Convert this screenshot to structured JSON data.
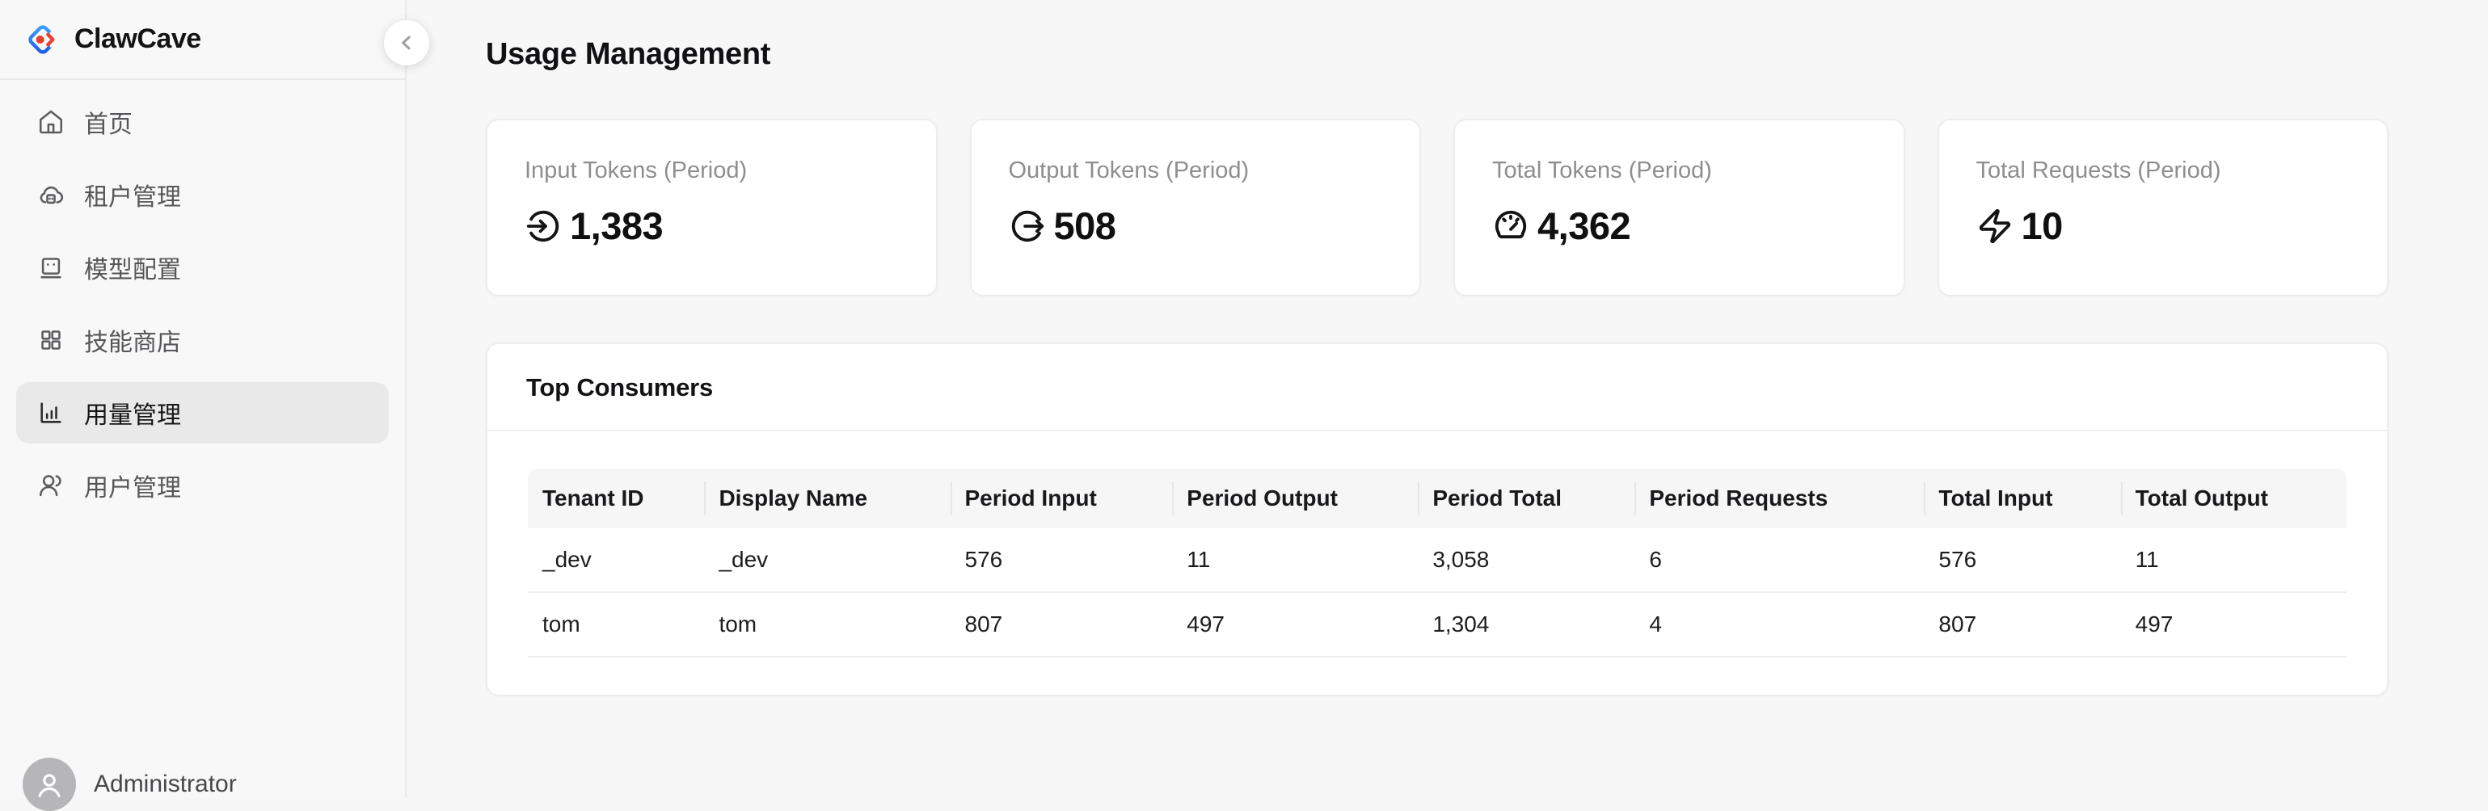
{
  "app": {
    "name": "ClawCave",
    "brand_colors": {
      "logo_blue_light": "#3AA2FF",
      "logo_blue_dark": "#1D59E8",
      "logo_red": "#E8402F"
    }
  },
  "sidebar": {
    "items": [
      {
        "key": "home",
        "label": "首页",
        "icon": "home",
        "active": false
      },
      {
        "key": "tenants",
        "label": "租户管理",
        "icon": "cloud-server",
        "active": false
      },
      {
        "key": "models",
        "label": "模型配置",
        "icon": "bot",
        "active": false
      },
      {
        "key": "skills",
        "label": "技能商店",
        "icon": "grid",
        "active": false
      },
      {
        "key": "usage",
        "label": "用量管理",
        "icon": "bar-chart",
        "active": true
      },
      {
        "key": "users",
        "label": "用户管理",
        "icon": "users",
        "active": false
      }
    ],
    "user": {
      "name": "Administrator"
    }
  },
  "main": {
    "title": "Usage Management",
    "stat_cards": [
      {
        "key": "input-tokens",
        "label": "Input Tokens (Period)",
        "value": "1,383",
        "icon": "arrow-into-circle"
      },
      {
        "key": "output-tokens",
        "label": "Output Tokens (Period)",
        "value": "508",
        "icon": "arrow-out-of-circle"
      },
      {
        "key": "total-tokens",
        "label": "Total Tokens (Period)",
        "value": "4,362",
        "icon": "gauge"
      },
      {
        "key": "total-requests",
        "label": "Total Requests (Period)",
        "value": "10",
        "icon": "zap"
      }
    ],
    "table": {
      "title": "Top Consumers",
      "columns": [
        "Tenant ID",
        "Display Name",
        "Period Input",
        "Period Output",
        "Period Total",
        "Period Requests",
        "Total Input",
        "Total Output"
      ],
      "rows": [
        [
          "_dev",
          "_dev",
          "576",
          "11",
          "3,058",
          "6",
          "576",
          "11"
        ],
        [
          "tom",
          "tom",
          "807",
          "497",
          "1,304",
          "4",
          "807",
          "497"
        ]
      ]
    }
  }
}
